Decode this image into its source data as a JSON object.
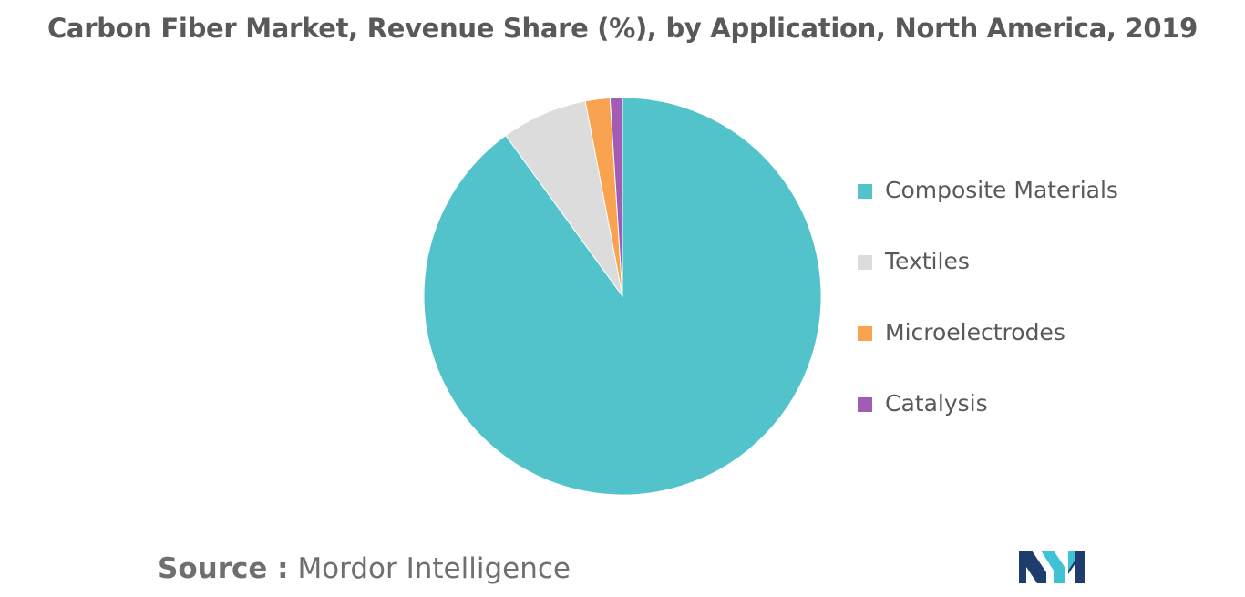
{
  "title": "Carbon Fiber Market, Revenue Share (%), by Application, North America, 2019",
  "chart_data": {
    "type": "pie",
    "title": "Carbon Fiber Market, Revenue Share (%), by Application, North America, 2019",
    "categories": [
      "Composite Materials",
      "Textiles",
      "Microelectrodes",
      "Catalysis"
    ],
    "values": [
      90,
      7,
      2,
      1
    ],
    "colors": [
      "#52c3ca",
      "#dcdcdc",
      "#f9a350",
      "#a25cb3"
    ],
    "legend_position": "right"
  },
  "legend": [
    {
      "label": "Composite Materials",
      "color": "#52c3ca"
    },
    {
      "label": "Textiles",
      "color": "#dcdcdc"
    },
    {
      "label": "Microelectrodes",
      "color": "#f9a350"
    },
    {
      "label": "Catalysis",
      "color": "#a25cb3"
    }
  ],
  "source": {
    "key": "Source :",
    "value": "Mordor Intelligence"
  },
  "logo": {
    "icon": "mordor-intelligence-logo-icon",
    "colors": [
      "#1f3c6e",
      "#3fc2d6"
    ]
  }
}
